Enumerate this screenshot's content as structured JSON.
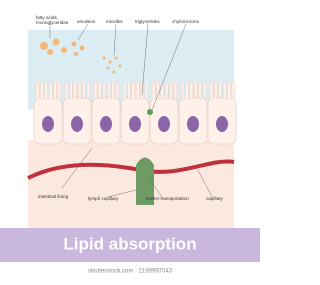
{
  "labels": {
    "fatty_acids": [
      "fatty acids,",
      "monoglycerides"
    ],
    "emulsion": "emulsion",
    "micelles": "micelles",
    "triglycerides": "triglycerides",
    "chylomicrons": "chylomicrons",
    "intestinal_lining": "intestinal lining",
    "lymph_capillary": "lymph capillary",
    "further_transportation": "further transportation",
    "capillary": "capillary"
  },
  "title": "Lipid absorption",
  "watermark": "shutterstock.com · 2199997043"
}
